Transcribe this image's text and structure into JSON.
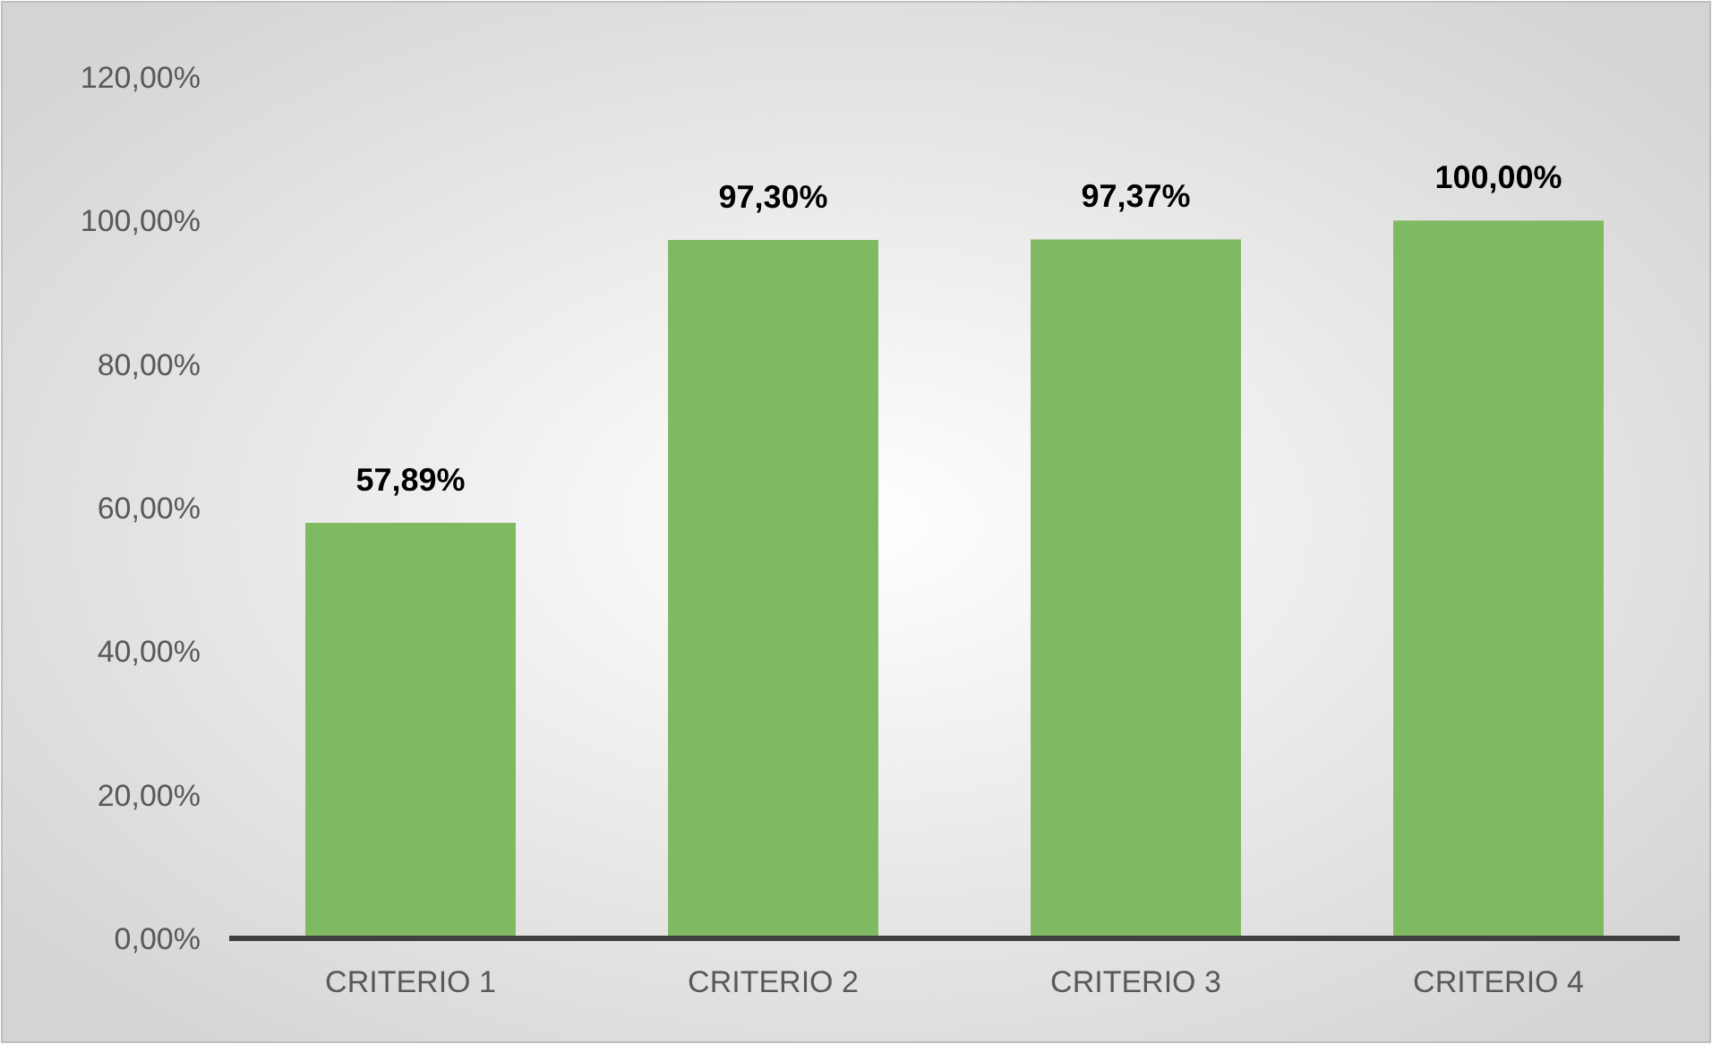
{
  "chart_data": {
    "type": "bar",
    "categories": [
      "CRITERIO 1",
      "CRITERIO 2",
      "CRITERIO 3",
      "CRITERIO 4"
    ],
    "values": [
      57.89,
      97.3,
      97.37,
      100
    ],
    "value_labels": [
      "57,89%",
      "97,30%",
      "97,37%",
      "100,00%"
    ],
    "color": "#7fb961",
    "ylim": [
      0,
      120
    ],
    "yticks": [
      {
        "value": 0,
        "label": "0,00%"
      },
      {
        "value": 20,
        "label": "20,00%"
      },
      {
        "value": 40,
        "label": "40,00%"
      },
      {
        "value": 60,
        "label": "60,00%"
      },
      {
        "value": 80,
        "label": "80,00%"
      },
      {
        "value": 100,
        "label": "100,00%"
      },
      {
        "value": 120,
        "label": "120,00%"
      }
    ],
    "grid": false
  }
}
